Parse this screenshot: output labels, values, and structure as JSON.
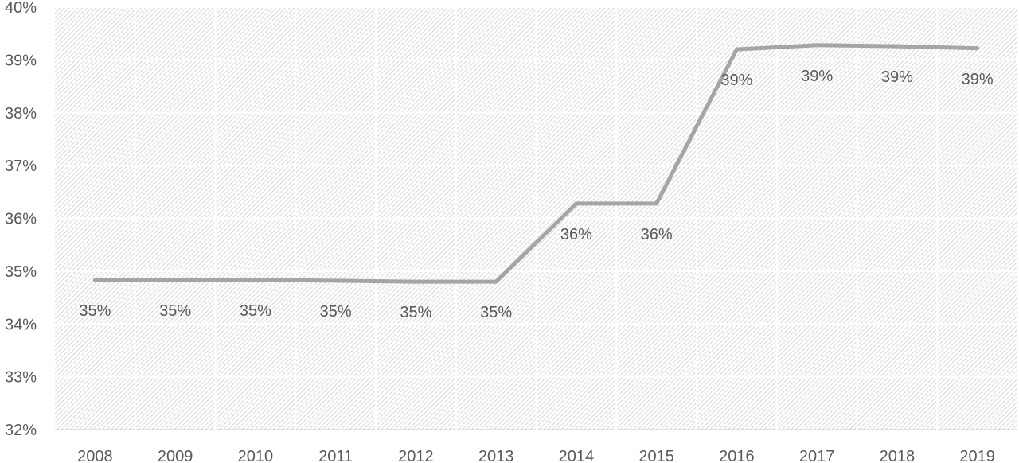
{
  "chart_data": {
    "type": "line",
    "title": "",
    "xlabel": "",
    "ylabel": "",
    "categories": [
      "2008",
      "2009",
      "2010",
      "2011",
      "2012",
      "2013",
      "2014",
      "2015",
      "2016",
      "2017",
      "2018",
      "2019"
    ],
    "series": [
      {
        "values": [
          34.83,
          34.83,
          34.83,
          34.82,
          34.8,
          34.8,
          36.28,
          36.28,
          39.2,
          39.28,
          39.26,
          39.22
        ],
        "data_labels": [
          "35%",
          "35%",
          "35%",
          "35%",
          "35%",
          "35%",
          "36%",
          "36%",
          "39%",
          "39%",
          "39%",
          "39%"
        ],
        "color": "#a5a5a5"
      }
    ],
    "ylim": [
      32,
      40
    ],
    "yticks": [
      32,
      33,
      34,
      35,
      36,
      37,
      38,
      39,
      40
    ],
    "ytick_labels": [
      "32%",
      "33%",
      "34%",
      "35%",
      "36%",
      "37%",
      "38%",
      "39%",
      "40%"
    ],
    "grid": true,
    "legend": "none",
    "colors": {
      "plot_background_pattern": "#d0d0d0",
      "gridline": "#ffffff",
      "axis": "#d9d9d9",
      "text": "#595959"
    }
  }
}
